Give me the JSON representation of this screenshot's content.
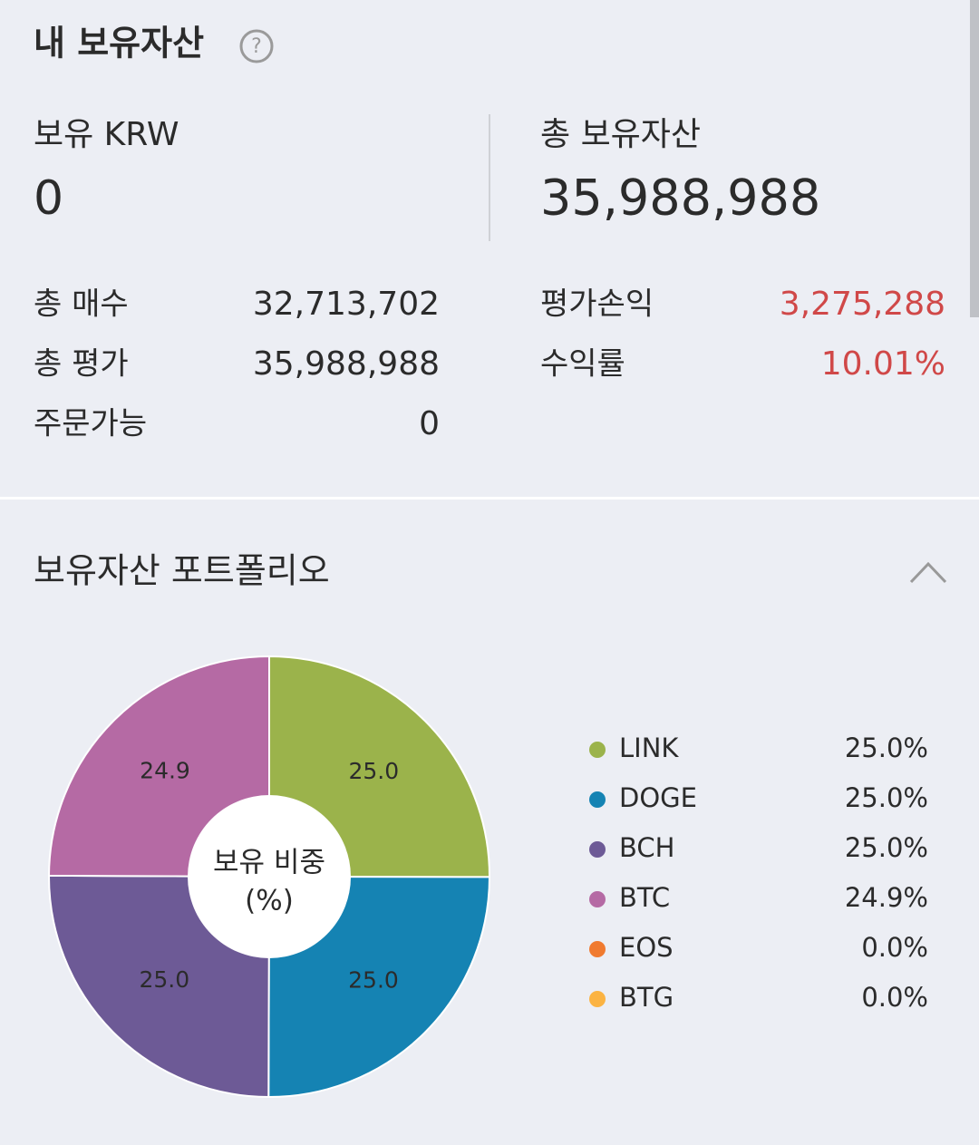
{
  "header": {
    "title": "내 보유자산"
  },
  "summary": {
    "krw_label": "보유 KRW",
    "krw_value": "0",
    "total_label": "총 보유자산",
    "total_value": "35,988,988"
  },
  "details": {
    "left": [
      [
        "총 매수",
        "32,713,702"
      ],
      [
        "총 평가",
        "35,988,988"
      ],
      [
        "주문가능",
        "0"
      ]
    ],
    "right": [
      [
        "평가손익",
        "3,275,288"
      ],
      [
        "수익률",
        "10.01%"
      ]
    ]
  },
  "chart_data": {
    "type": "pie",
    "title": "보유자산 포트폴리오",
    "center_label": [
      "보유 비중",
      "(%)"
    ],
    "categories": [
      "LINK",
      "DOGE",
      "BCH",
      "BTC",
      "EOS",
      "BTG"
    ],
    "values": [
      25.0,
      25.0,
      25.0,
      24.9,
      0.0,
      0.0
    ],
    "value_labels": [
      "25.0",
      "25.0",
      "25.0",
      "24.9",
      null,
      null
    ],
    "legend_labels": [
      "25.0%",
      "25.0%",
      "25.0%",
      "24.9%",
      "0.0%",
      "0.0%"
    ],
    "colors": [
      "#9bb34b",
      "#1583b3",
      "#6d5a96",
      "#b56aa4",
      "#f07a2f",
      "#fbb342"
    ]
  }
}
